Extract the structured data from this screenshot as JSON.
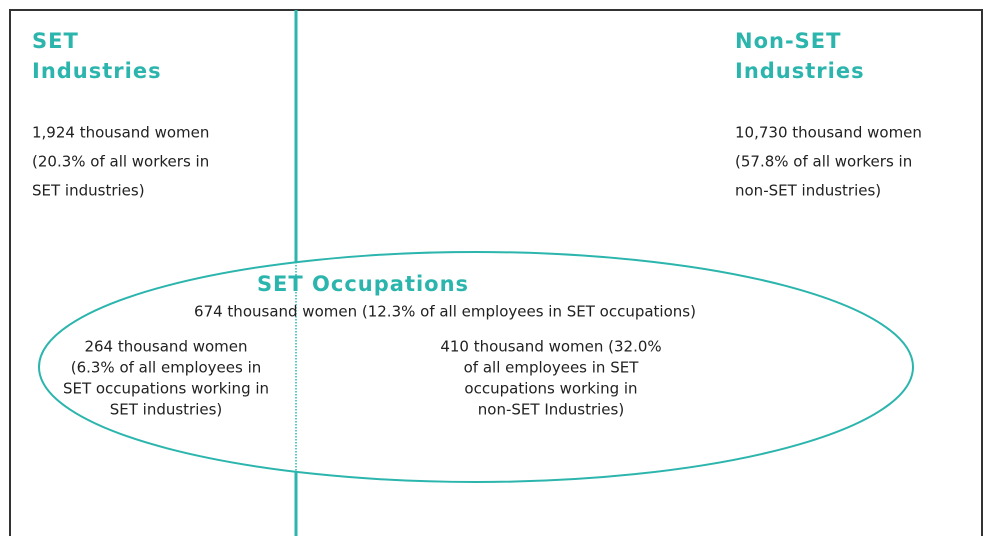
{
  "left_region": {
    "title": [
      "SET",
      "Industries"
    ],
    "body": [
      "1,924 thousand women",
      "(20.3% of all workers in",
      "SET industries)"
    ]
  },
  "right_region": {
    "title": [
      "Non-SET",
      "Industries"
    ],
    "body": [
      "10,730 thousand women",
      "(57.8% of all workers in",
      "non-SET industries)"
    ]
  },
  "ellipse": {
    "title": "SET Occupations",
    "summary": "674 thousand women (12.3% of all employees in SET occupations)",
    "left_body": [
      "264 thousand women",
      "(6.3% of all employees in",
      "SET occupations working in",
      "SET industries)"
    ],
    "right_body": [
      "410 thousand women (32.0%",
      "of all employees in SET",
      "occupations working in",
      "non-SET Industries)"
    ]
  }
}
